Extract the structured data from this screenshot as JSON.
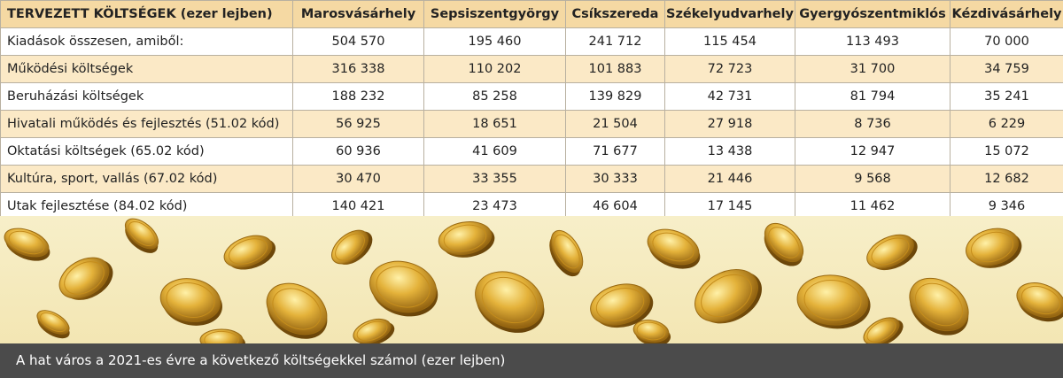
{
  "chart_data": {
    "type": "table",
    "title": "TERVEZETT KÖLTSÉGEK (ezer lejben)",
    "columns": [
      "Marosvásárhely",
      "Sepsiszentgyörgy",
      "Csíkszereda",
      "Székelyudvarhely",
      "Gyergyószentmiklós",
      "Kézdivásárhely"
    ],
    "rows": [
      {
        "label": "Kiadások összesen, amiből:",
        "values": [
          "504 570",
          "195 460",
          "241 712",
          "115 454",
          "113 493",
          "70 000"
        ]
      },
      {
        "label": "Működési költségek",
        "values": [
          "316 338",
          "110 202",
          "101 883",
          "72 723",
          "31 700",
          "34 759"
        ]
      },
      {
        "label": "Beruházási költségek",
        "values": [
          "188 232",
          "85 258",
          "139 829",
          "42 731",
          "81 794",
          "35 241"
        ]
      },
      {
        "label": "Hivatali működés és fejlesztés (51.02 kód)",
        "values": [
          "56 925",
          "18 651",
          "21 504",
          "27 918",
          "8 736",
          "6 229"
        ]
      },
      {
        "label": "Oktatási költségek (65.02 kód)",
        "values": [
          "60 936",
          "41 609",
          "71 677",
          "13 438",
          "12 947",
          "15 072"
        ]
      },
      {
        "label": "Kultúra, sport, vallás (67.02 kód)",
        "values": [
          "30 470",
          "33 355",
          "30 333",
          "21 446",
          "9 568",
          "12 682"
        ]
      },
      {
        "label": "Utak fejlesztése (84.02 kód)",
        "values": [
          "140 421",
          "23 473",
          "46 604",
          "17 145",
          "11 462",
          "9 346"
        ]
      }
    ]
  },
  "caption": "A hat város a 2021-es évre a következő költségekkel számol (ezer lejben)",
  "colors": {
    "header_bg": "#f5d9a3",
    "stripe_bg": "#fbe9c6",
    "caption_bg": "#4b4b4b",
    "coin_gold": "#d9a11e"
  },
  "decoration": "falling-gold-coins"
}
